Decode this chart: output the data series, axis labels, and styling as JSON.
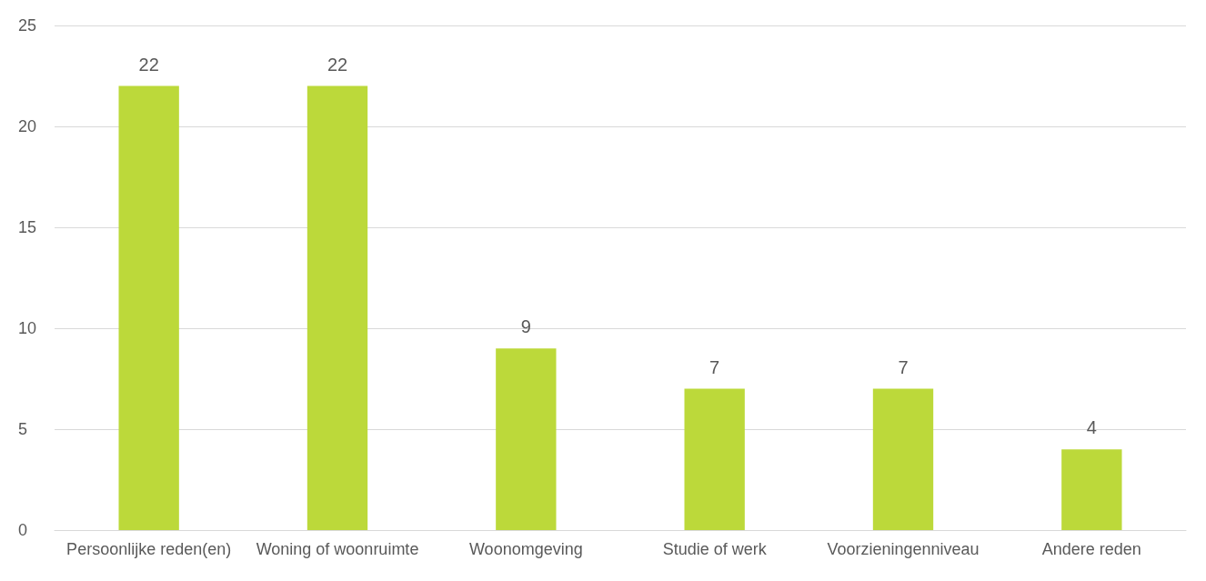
{
  "chart_data": {
    "type": "bar",
    "categories": [
      "Persoonlijke reden(en)",
      "Woning of woonruimte",
      "Woonomgeving",
      "Studie of werk",
      "Voorzieningenniveau",
      "Andere reden"
    ],
    "values": [
      22,
      22,
      9,
      7,
      7,
      4
    ],
    "color": "#bcd93a",
    "ylim": [
      0,
      25
    ],
    "yticks": [
      0,
      5,
      10,
      15,
      20,
      25
    ],
    "grid": "y",
    "data_labels": true
  }
}
